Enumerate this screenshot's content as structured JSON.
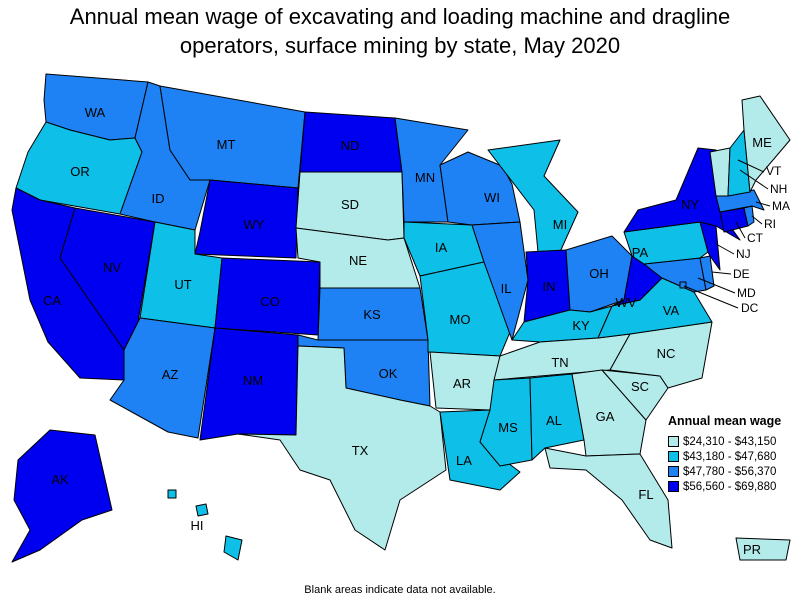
{
  "title": {
    "line1": "Annual mean wage of excavating and loading machine and dragline",
    "line2": "operators, surface mining by state, May 2020"
  },
  "legend": {
    "title": "Annual mean wage",
    "items": [
      {
        "label": "$24,310 - $43,150",
        "color": "#b3ebeb"
      },
      {
        "label": "$43,180 - $47,680",
        "color": "#0ebfe8"
      },
      {
        "label": "$47,780 - $56,370",
        "color": "#1e82f5"
      },
      {
        "label": "$56,560 - $69,880",
        "color": "#0000f0"
      }
    ]
  },
  "states": {
    "WA": 3,
    "OR": 2,
    "CA": 4,
    "NV": 4,
    "ID": 3,
    "MT": 3,
    "WY": 4,
    "UT": 2,
    "AZ": 3,
    "CO": 4,
    "NM": 4,
    "ND": 4,
    "SD": 1,
    "NE": 1,
    "KS": 3,
    "OK": 3,
    "TX": 1,
    "MN": 3,
    "IA": 2,
    "MO": 2,
    "AR": 1,
    "LA": 2,
    "WI": 3,
    "IL": 3,
    "MI": 2,
    "IN": 4,
    "OH": 3,
    "KY": 2,
    "TN": 1,
    "MS": 2,
    "AL": 2,
    "GA": 1,
    "FL": 1,
    "SC": 1,
    "NC": 1,
    "VA": 2,
    "WV": 4,
    "MD": 3,
    "DE": 3,
    "PA": 2,
    "NJ": 4,
    "NY": 4,
    "CT": 4,
    "RI": 3,
    "MA": 3,
    "VT": 1,
    "NH": 2,
    "ME": 1,
    "AK": 4,
    "HI": 2,
    "PR": 1,
    "DC": 3
  },
  "footnote": "Blank areas indicate data not available."
}
